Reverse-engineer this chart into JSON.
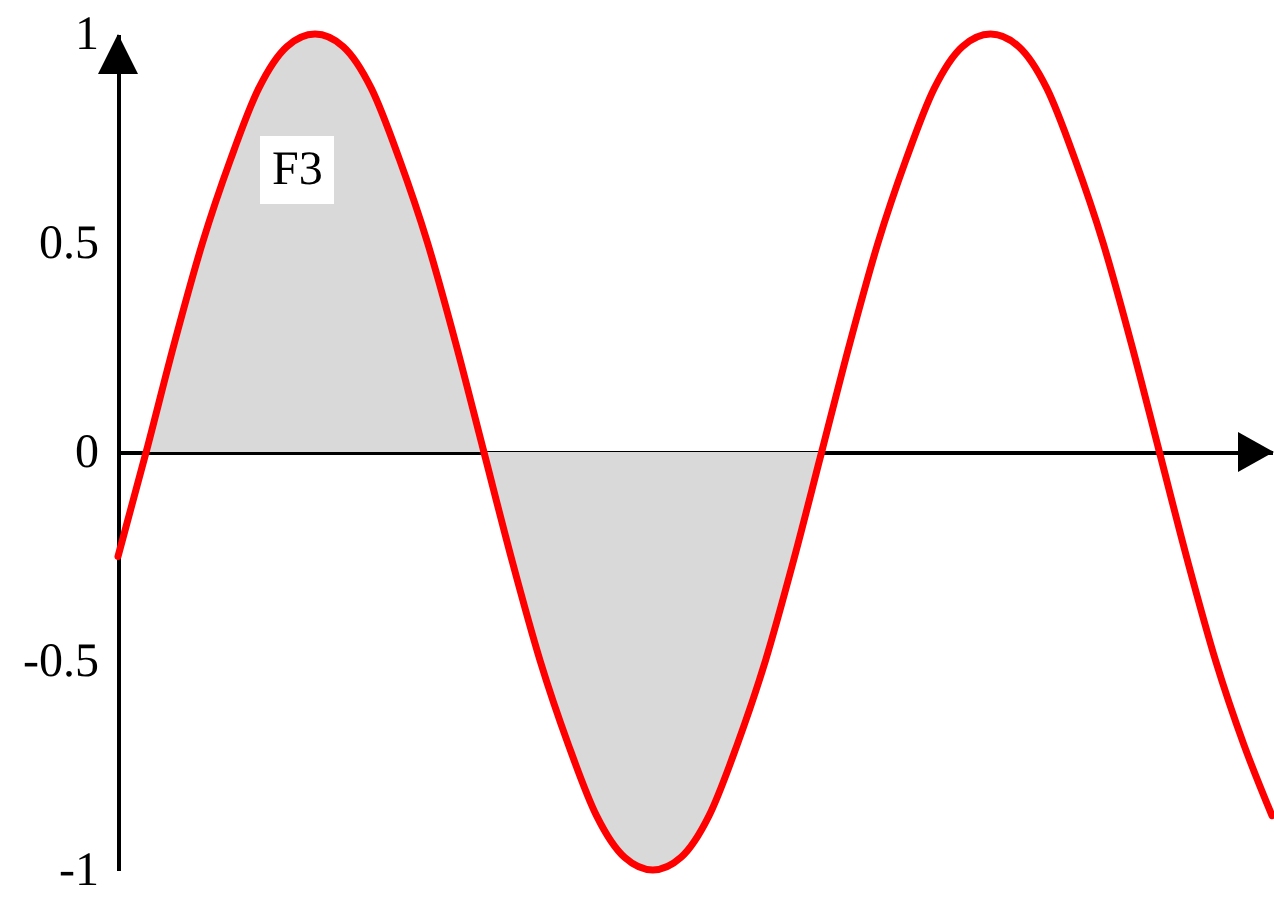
{
  "chart_data": {
    "type": "line",
    "categories": [
      null,
      null,
      null,
      null,
      null,
      null,
      null,
      null,
      null,
      null,
      null,
      null,
      null,
      null,
      null,
      null,
      null,
      null,
      null,
      null,
      null,
      null,
      null,
      null,
      null,
      null,
      null,
      null,
      null,
      null,
      null,
      null,
      null,
      null,
      null,
      null,
      null,
      null,
      null,
      null,
      null,
      null
    ],
    "series": [
      {
        "type": "area",
        "color": "#d9d9d9",
        "values": [
          null,
          0,
          0.26,
          0.5,
          0.7,
          0.87,
          0.97,
          1,
          0.97,
          0.87,
          0.7,
          0.5,
          0.26,
          0,
          -0.26,
          -0.5,
          -0.7,
          -0.87,
          -0.97,
          -1,
          -0.97,
          -0.87,
          -0.7,
          -0.5,
          -0.26,
          0,
          null,
          null,
          null,
          null,
          null,
          null,
          null,
          null,
          null,
          null,
          null,
          null,
          null,
          null,
          null,
          null
        ]
      },
      {
        "color": "#ff0000",
        "values": [
          -0.25,
          0,
          0.26,
          0.5,
          0.7,
          0.87,
          0.97,
          1,
          0.97,
          0.87,
          0.7,
          0.5,
          0.26,
          0,
          -0.26,
          -0.5,
          -0.7,
          -0.87,
          -0.97,
          -1,
          -0.97,
          -0.87,
          -0.7,
          -0.5,
          -0.26,
          0,
          0.26,
          0.5,
          0.7,
          0.87,
          0.97,
          1,
          0.97,
          0.87,
          0.7,
          0.5,
          0.26,
          0,
          -0.26,
          -0.5,
          -0.7,
          -0.87
        ]
      }
    ],
    "ylim": [
      -1,
      1
    ],
    "yticks": [
      {
        "value": -1,
        "label": "-1"
      },
      {
        "value": -0.5,
        "label": "-0.5"
      },
      0,
      0.5,
      1
    ],
    "tick_labels": "y",
    "annotations": [
      "F3"
    ]
  }
}
